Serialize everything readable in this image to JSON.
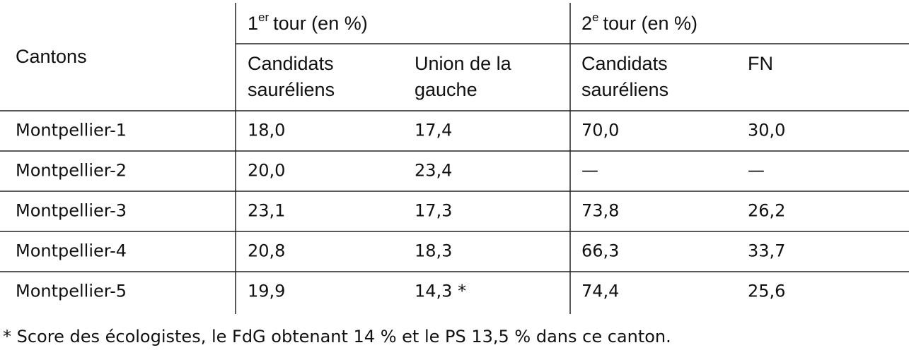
{
  "header": {
    "cantons": "Cantons",
    "round1": {
      "number": "1",
      "sup": "er",
      "text": "tour (en %)"
    },
    "round2": {
      "number": "2",
      "sup": "e",
      "text": "tour (en %)"
    },
    "subheaders": [
      [
        "Candidats",
        "sauréliens"
      ],
      [
        "Union de la",
        "gauche"
      ],
      [
        "Candidats",
        "sauréliens"
      ],
      [
        "FN"
      ]
    ]
  },
  "table": {
    "rows": [
      [
        "Montpellier-1",
        "18,0",
        "17,4",
        "70,0",
        "30,0"
      ],
      [
        "Montpellier-2",
        "20,0",
        "23,4",
        "—",
        "—"
      ],
      [
        "Montpellier-3",
        "23,1",
        "17,3",
        "73,8",
        "26,2"
      ],
      [
        "Montpellier-4",
        "20,8",
        "18,3",
        "66,3",
        "33,7"
      ],
      [
        "Montpellier-5",
        "19,9",
        "14,3 *",
        "74,4",
        "25,6"
      ]
    ]
  },
  "footnote": "* Score des écologistes, le FdG obtenant 14 % et le PS 13,5 % dans ce canton."
}
